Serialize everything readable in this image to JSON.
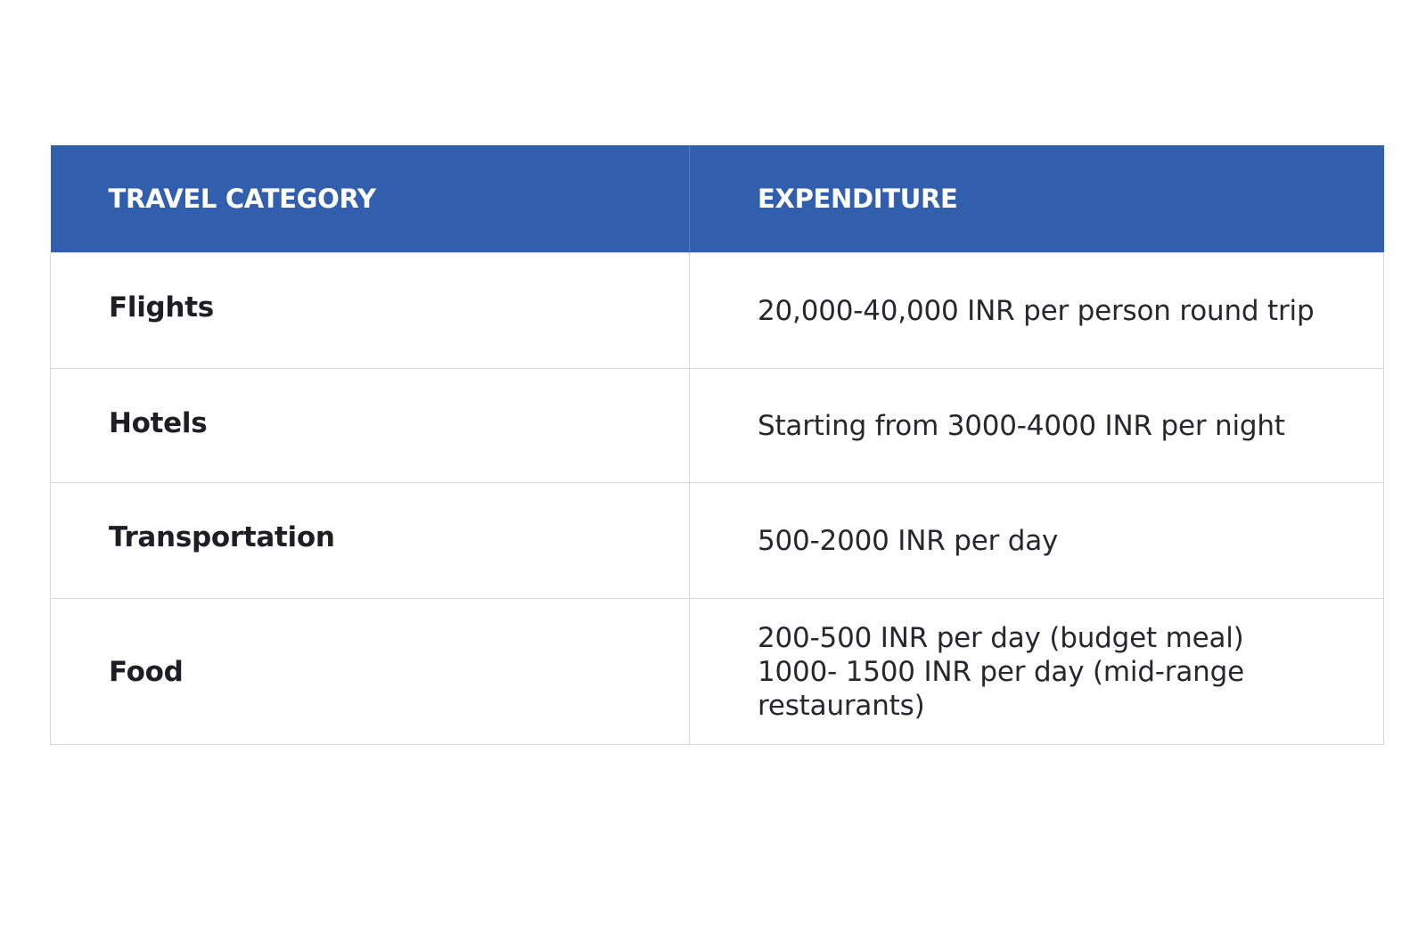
{
  "table": {
    "headers": [
      "TRAVEL CATEGORY",
      "EXPENDITURE"
    ],
    "rows": [
      {
        "category": "Flights",
        "expenditure": [
          "20,000-40,000 INR per person round trip"
        ]
      },
      {
        "category": "Hotels",
        "expenditure": [
          "Starting from 3000-4000 INR per night"
        ]
      },
      {
        "category": "Transportation",
        "expenditure": [
          "500-2000 INR per day"
        ]
      },
      {
        "category": "Food",
        "expenditure": [
          "200-500 INR per day (budget meal)",
          "1000- 1500 INR per day (mid-range",
          "restaurants)"
        ]
      }
    ],
    "colors": {
      "header_background": "#325fad",
      "header_text": "#ffffff",
      "border": "#d9d9d9"
    }
  }
}
